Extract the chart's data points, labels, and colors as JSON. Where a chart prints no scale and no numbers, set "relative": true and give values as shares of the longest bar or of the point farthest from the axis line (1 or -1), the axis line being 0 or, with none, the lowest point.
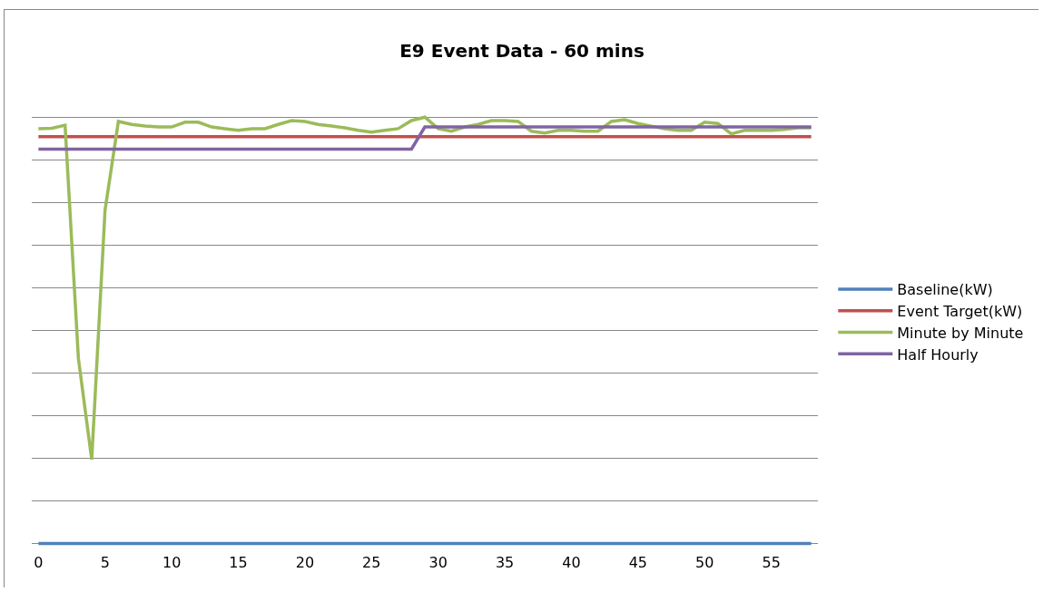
{
  "chart_data": {
    "type": "line",
    "title": "E9 Event Data - 60 mins",
    "relative": true,
    "x": [
      0,
      1,
      2,
      3,
      4,
      5,
      6,
      7,
      8,
      9,
      10,
      11,
      12,
      13,
      14,
      15,
      16,
      17,
      18,
      19,
      20,
      21,
      22,
      23,
      24,
      25,
      26,
      27,
      28,
      29,
      30,
      31,
      32,
      33,
      34,
      35,
      36,
      37,
      38,
      39,
      40,
      41,
      42,
      43,
      44,
      45,
      46,
      47,
      48,
      49,
      50,
      51,
      52,
      53,
      54,
      55,
      56,
      57,
      58
    ],
    "xlim": [
      -0.5,
      58.5
    ],
    "xticks": [
      0,
      5,
      10,
      15,
      20,
      25,
      30,
      35,
      40,
      45,
      50,
      55
    ],
    "grid": "y",
    "legend": "right",
    "marker": "none",
    "line_style": "solid",
    "series": [
      {
        "name": "Baseline(kW)",
        "color": "#4f81bd",
        "values": [
          0,
          0,
          0,
          0,
          0,
          0,
          0,
          0,
          0,
          0,
          0,
          0,
          0,
          0,
          0,
          0,
          0,
          0,
          0,
          0,
          0,
          0,
          0,
          0,
          0,
          0,
          0,
          0,
          0,
          0,
          0,
          0,
          0,
          0,
          0,
          0,
          0,
          0,
          0,
          0,
          0,
          0,
          0,
          0,
          0,
          0,
          0,
          0,
          0,
          0,
          0,
          0,
          0,
          0,
          0,
          0,
          0,
          0,
          0
        ]
      },
      {
        "name": "Event Target(kW)",
        "color": "#c0504d",
        "values": [
          0.954,
          0.954,
          0.954,
          0.954,
          0.954,
          0.954,
          0.954,
          0.954,
          0.954,
          0.954,
          0.954,
          0.954,
          0.954,
          0.954,
          0.954,
          0.954,
          0.954,
          0.954,
          0.954,
          0.954,
          0.954,
          0.954,
          0.954,
          0.954,
          0.954,
          0.954,
          0.954,
          0.954,
          0.954,
          0.954,
          0.954,
          0.954,
          0.954,
          0.954,
          0.954,
          0.954,
          0.954,
          0.954,
          0.954,
          0.954,
          0.954,
          0.954,
          0.954,
          0.954,
          0.954,
          0.954,
          0.954,
          0.954,
          0.954,
          0.954,
          0.954,
          0.954,
          0.954,
          0.954,
          0.954,
          0.954,
          0.954,
          0.954,
          0.954
        ]
      },
      {
        "name": "Minute by Minute",
        "color": "#9bbb59",
        "values": [
          0.973,
          0.974,
          0.981,
          0.434,
          0.197,
          0.782,
          0.99,
          0.983,
          0.979,
          0.977,
          0.977,
          0.988,
          0.988,
          0.977,
          0.973,
          0.969,
          0.973,
          0.973,
          0.983,
          0.992,
          0.99,
          0.983,
          0.979,
          0.975,
          0.969,
          0.965,
          0.969,
          0.973,
          0.992,
          1,
          0.973,
          0.967,
          0.977,
          0.983,
          0.992,
          0.992,
          0.99,
          0.967,
          0.963,
          0.969,
          0.969,
          0.967,
          0.967,
          0.99,
          0.994,
          0.985,
          0.979,
          0.973,
          0.969,
          0.969,
          0.988,
          0.985,
          0.961,
          0.969,
          0.969,
          0.969,
          0.971,
          0.975,
          0.975
        ]
      },
      {
        "name": "Half Hourly",
        "color": "#8064a2",
        "values": [
          0.925,
          0.925,
          0.925,
          0.925,
          0.925,
          0.925,
          0.925,
          0.925,
          0.925,
          0.925,
          0.925,
          0.925,
          0.925,
          0.925,
          0.925,
          0.925,
          0.925,
          0.925,
          0.925,
          0.925,
          0.925,
          0.925,
          0.925,
          0.925,
          0.925,
          0.925,
          0.925,
          0.925,
          0.925,
          0.977,
          0.977,
          0.977,
          0.977,
          0.977,
          0.977,
          0.977,
          0.977,
          0.977,
          0.977,
          0.977,
          0.977,
          0.977,
          0.977,
          0.977,
          0.977,
          0.977,
          0.977,
          0.977,
          0.977,
          0.977,
          0.977,
          0.977,
          0.977,
          0.977,
          0.977,
          0.977,
          0.977,
          0.977,
          0.977
        ]
      }
    ]
  }
}
